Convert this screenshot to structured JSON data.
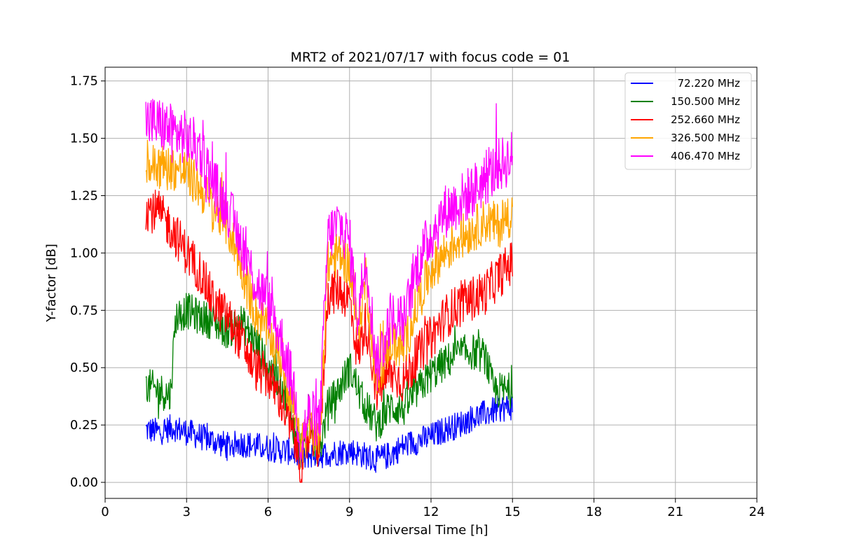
{
  "chart_data": {
    "type": "line",
    "title": "MRT2 of 2021/07/17 with focus code = 01",
    "xlabel": "Universal Time [h]",
    "ylabel": "Y-factor [dB]",
    "xlim": [
      0,
      24
    ],
    "ylim": [
      -0.07,
      1.81
    ],
    "xticks": [
      0,
      3,
      6,
      9,
      12,
      15,
      18,
      21,
      24
    ],
    "xtick_labels": [
      "0",
      "3",
      "6",
      "9",
      "12",
      "15",
      "18",
      "21",
      "24"
    ],
    "yticks": [
      0.0,
      0.25,
      0.5,
      0.75,
      1.0,
      1.25,
      1.5,
      1.75
    ],
    "ytick_labels": [
      "0.00",
      "0.25",
      "0.50",
      "0.75",
      "1.00",
      "1.25",
      "1.50",
      "1.75"
    ],
    "grid": true,
    "legend_position": "top-right",
    "series": [
      {
        "name": "72.220 MHz",
        "color": "#0000ff",
        "noise": 0.06,
        "x": [
          1.5,
          2.0,
          2.5,
          3.0,
          3.5,
          4.0,
          4.5,
          5.0,
          5.5,
          6.0,
          6.5,
          7.0,
          7.2,
          7.5,
          8.0,
          8.5,
          9.0,
          9.5,
          10.0,
          10.5,
          11.0,
          11.5,
          12.0,
          12.5,
          13.0,
          13.5,
          14.0,
          14.5,
          15.0
        ],
        "y": [
          0.23,
          0.22,
          0.24,
          0.22,
          0.2,
          0.18,
          0.16,
          0.17,
          0.16,
          0.15,
          0.14,
          0.13,
          0.09,
          0.12,
          0.12,
          0.13,
          0.14,
          0.12,
          0.1,
          0.12,
          0.16,
          0.18,
          0.2,
          0.23,
          0.25,
          0.28,
          0.3,
          0.32,
          0.33
        ]
      },
      {
        "name": "150.500 MHz",
        "color": "#008000",
        "noise": 0.08,
        "x": [
          1.5,
          2.0,
          2.4,
          2.6,
          3.0,
          3.5,
          4.0,
          4.5,
          5.0,
          5.5,
          6.0,
          6.5,
          7.0,
          7.2,
          7.5,
          7.9,
          8.2,
          8.6,
          9.0,
          9.5,
          10.0,
          10.5,
          11.0,
          11.5,
          12.0,
          12.5,
          13.0,
          13.5,
          14.0,
          14.3,
          15.0
        ],
        "y": [
          0.42,
          0.4,
          0.38,
          0.72,
          0.75,
          0.72,
          0.7,
          0.66,
          0.7,
          0.62,
          0.5,
          0.43,
          0.22,
          0.15,
          0.22,
          0.14,
          0.33,
          0.4,
          0.5,
          0.35,
          0.25,
          0.33,
          0.32,
          0.4,
          0.47,
          0.52,
          0.56,
          0.57,
          0.55,
          0.4,
          0.4
        ]
      },
      {
        "name": "252.660 MHz",
        "color": "#ff0000",
        "noise": 0.1,
        "x": [
          1.5,
          2.0,
          2.5,
          3.0,
          3.5,
          4.0,
          4.5,
          5.0,
          5.5,
          6.0,
          6.5,
          7.0,
          7.2,
          7.5,
          7.9,
          8.2,
          8.6,
          9.0,
          9.3,
          9.6,
          10.0,
          10.5,
          11.0,
          11.5,
          12.0,
          12.5,
          13.0,
          13.5,
          14.0,
          14.5,
          15.0
        ],
        "y": [
          1.2,
          1.17,
          1.1,
          1.0,
          0.92,
          0.78,
          0.72,
          0.62,
          0.5,
          0.46,
          0.35,
          0.18,
          0.06,
          0.2,
          0.15,
          0.82,
          0.84,
          0.8,
          0.55,
          0.7,
          0.4,
          0.48,
          0.44,
          0.55,
          0.63,
          0.72,
          0.77,
          0.8,
          0.83,
          0.9,
          0.96
        ]
      },
      {
        "name": "326.500 MHz",
        "color": "#ffa500",
        "noise": 0.1,
        "x": [
          1.5,
          2.0,
          2.5,
          3.0,
          3.5,
          4.0,
          4.5,
          5.0,
          5.5,
          6.0,
          6.5,
          7.0,
          7.2,
          7.5,
          7.9,
          8.2,
          8.6,
          9.0,
          9.3,
          9.6,
          10.0,
          10.5,
          11.0,
          11.5,
          12.0,
          12.5,
          13.0,
          13.5,
          14.0,
          14.5,
          15.0
        ],
        "y": [
          1.38,
          1.38,
          1.37,
          1.35,
          1.28,
          1.2,
          1.12,
          0.95,
          0.75,
          0.66,
          0.52,
          0.3,
          0.14,
          0.25,
          0.2,
          0.95,
          1.0,
          0.95,
          0.65,
          0.9,
          0.42,
          0.62,
          0.58,
          0.78,
          0.93,
          1.0,
          1.06,
          1.1,
          1.14,
          1.12,
          1.18
        ]
      },
      {
        "name": "406.470 MHz",
        "color": "#ff00ff",
        "noise": 0.12,
        "x": [
          1.5,
          2.0,
          2.5,
          3.0,
          3.5,
          4.0,
          4.5,
          5.0,
          5.5,
          6.0,
          6.5,
          7.0,
          7.2,
          7.5,
          7.9,
          8.2,
          8.6,
          9.0,
          9.3,
          9.6,
          10.0,
          10.5,
          11.0,
          11.5,
          12.0,
          12.5,
          13.0,
          13.5,
          14.0,
          14.5,
          15.0
        ],
        "y": [
          1.58,
          1.56,
          1.53,
          1.5,
          1.45,
          1.3,
          1.2,
          1.05,
          0.88,
          0.78,
          0.62,
          0.38,
          0.16,
          0.3,
          0.25,
          1.07,
          1.13,
          1.05,
          0.72,
          1.0,
          0.5,
          0.72,
          0.7,
          0.95,
          1.08,
          1.18,
          1.22,
          1.27,
          1.32,
          1.38,
          1.42
        ]
      }
    ]
  }
}
